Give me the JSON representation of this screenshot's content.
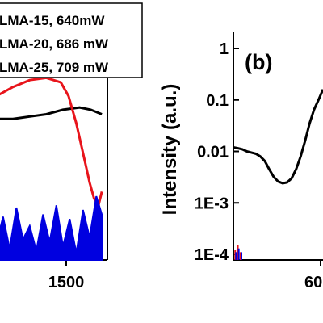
{
  "chart_data": [
    {
      "type": "line",
      "title": "",
      "xlabel": "",
      "ylabel": "",
      "xlim": [
        1380,
        1540
      ],
      "ylim": [
        0,
        1
      ],
      "x_ticks": [
        {
          "value": 1500,
          "label": "1500"
        }
      ],
      "legend": {
        "placement": "top-left",
        "entries": [
          "LMA-15, 640mW",
          "LMA-20, 686 mW",
          "LMA-25, 709 mW"
        ]
      },
      "series": [
        {
          "name": "LMA-15, 640mW",
          "color": "#000000",
          "x": [
            1380,
            1395,
            1410,
            1425,
            1440,
            1455,
            1470,
            1485,
            1500,
            1515,
            1525,
            1535
          ],
          "y": [
            0.6,
            0.59,
            0.6,
            0.61,
            0.62,
            0.62,
            0.63,
            0.64,
            0.66,
            0.67,
            0.66,
            0.64
          ]
        },
        {
          "name": "LMA-20, 686 mW",
          "color": "#e8141b",
          "x": [
            1380,
            1400,
            1420,
            1440,
            1455,
            1470,
            1485,
            1498,
            1505,
            1512,
            1518,
            1524,
            1528,
            1532,
            1535
          ],
          "y": [
            0.66,
            0.68,
            0.7,
            0.72,
            0.76,
            0.79,
            0.8,
            0.78,
            0.72,
            0.6,
            0.47,
            0.34,
            0.27,
            0.24,
            0.3
          ]
        },
        {
          "name": "LMA-25, 709 mW",
          "color": "#0000e0",
          "x": [
            1380,
            1386,
            1392,
            1398,
            1404,
            1410,
            1416,
            1422,
            1428,
            1434,
            1440,
            1446,
            1452,
            1458,
            1464,
            1470,
            1476,
            1482,
            1488,
            1494,
            1500,
            1506,
            1512,
            1518,
            1524,
            1530,
            1535
          ],
          "y": [
            0.05,
            0.22,
            0.08,
            0.18,
            0.04,
            0.25,
            0.1,
            0.16,
            0.03,
            0.21,
            0.07,
            0.19,
            0.05,
            0.23,
            0.09,
            0.15,
            0.04,
            0.2,
            0.08,
            0.24,
            0.06,
            0.18,
            0.03,
            0.22,
            0.1,
            0.28,
            0.2
          ]
        }
      ]
    },
    {
      "type": "line",
      "title": "",
      "panel_label": "(b)",
      "xlabel": "",
      "ylabel": "Intensity (a.u.)",
      "yscale": "log",
      "ylim": [
        0.0001,
        1
      ],
      "y_ticks": [
        {
          "value": 1,
          "label": "1"
        },
        {
          "value": 0.1,
          "label": "0.1"
        },
        {
          "value": 0.01,
          "label": "0.01"
        },
        {
          "value": 0.001,
          "label": "1E-3"
        },
        {
          "value": 0.0001,
          "label": "1E-4"
        }
      ],
      "x_tick_partial": "60",
      "series": [
        {
          "name": "",
          "color": "#000000",
          "x": [
            0,
            0.05,
            0.1,
            0.15,
            0.2,
            0.25,
            0.3,
            0.35,
            0.4,
            0.45,
            0.5,
            0.55,
            0.6,
            0.65,
            0.7,
            0.75,
            0.8,
            0.85,
            0.9,
            0.95,
            1.0
          ],
          "y": [
            0.012,
            0.0115,
            0.011,
            0.01,
            0.0095,
            0.009,
            0.008,
            0.0065,
            0.0045,
            0.0032,
            0.0026,
            0.0024,
            0.0025,
            0.003,
            0.0045,
            0.008,
            0.016,
            0.035,
            0.065,
            0.1,
            0.16
          ]
        },
        {
          "name": "",
          "color": "#e8141b",
          "x": [
            0.02,
            0.05,
            0.08
          ],
          "y": [
            0.00012,
            0.00015,
            0.00011
          ]
        },
        {
          "name": "",
          "color": "#0000e0",
          "x": [
            0.03,
            0.06,
            0.09
          ],
          "y": [
            0.00011,
            0.00013,
            0.00011
          ]
        }
      ]
    }
  ],
  "colors": {
    "black": "#000000",
    "red": "#e8141b",
    "blue": "#0000e0"
  }
}
